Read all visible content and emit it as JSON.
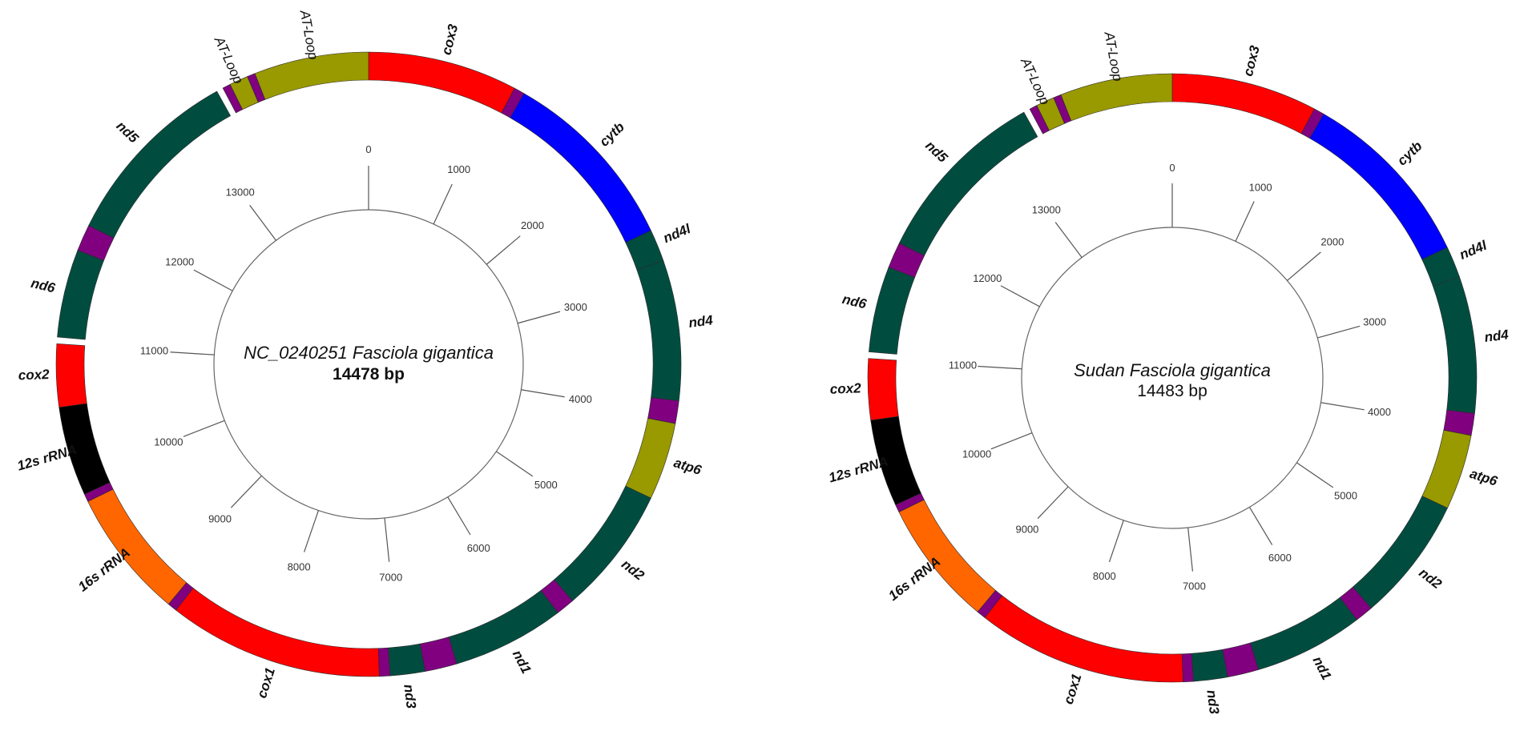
{
  "maps": [
    {
      "id": "reference",
      "title": "NC_0240251 Fasciola gigantica",
      "length_label": "14478  bp",
      "total_bp": 14478,
      "ticks": [
        0,
        1000,
        2000,
        3000,
        4000,
        5000,
        6000,
        7000,
        8000,
        9000,
        10000,
        11000,
        12000,
        13000
      ],
      "segments": [
        {
          "name": "cox3",
          "start": 0,
          "end": 1120,
          "color": "#ff0000"
        },
        {
          "name": "trna",
          "start": 1120,
          "end": 1200,
          "color": "#800080"
        },
        {
          "name": "cytb",
          "start": 1200,
          "end": 2600,
          "color": "#0000ff"
        },
        {
          "name": "nd4l",
          "start": 2600,
          "end": 2840,
          "color": "#004d40"
        },
        {
          "name": "nd4",
          "start": 2840,
          "end": 3890,
          "color": "#004d40"
        },
        {
          "name": "trna",
          "start": 3890,
          "end": 4060,
          "color": "#800080"
        },
        {
          "name": "atp6",
          "start": 4060,
          "end": 4640,
          "color": "#999900"
        },
        {
          "name": "nd2",
          "start": 4640,
          "end": 5600,
          "color": "#004d40"
        },
        {
          "name": "trna",
          "start": 5600,
          "end": 5740,
          "color": "#800080"
        },
        {
          "name": "nd1",
          "start": 5740,
          "end": 6580,
          "color": "#004d40"
        },
        {
          "name": "trna",
          "start": 6580,
          "end": 6820,
          "color": "#800080"
        },
        {
          "name": "nd3",
          "start": 6820,
          "end": 7080,
          "color": "#004d40"
        },
        {
          "name": "trna",
          "start": 7080,
          "end": 7160,
          "color": "#800080"
        },
        {
          "name": "cox1",
          "start": 7160,
          "end": 8770,
          "color": "#ff0000"
        },
        {
          "name": "trna",
          "start": 8770,
          "end": 8840,
          "color": "#800080"
        },
        {
          "name": "16s rRNA",
          "start": 8840,
          "end": 9810,
          "color": "#ff6600"
        },
        {
          "name": "trna",
          "start": 9810,
          "end": 9870,
          "color": "#800080"
        },
        {
          "name": "12s rRNA",
          "start": 9870,
          "end": 10540,
          "color": "#000000"
        },
        {
          "name": "cox2",
          "start": 10540,
          "end": 11010,
          "color": "#ff0000"
        },
        {
          "name": "nd6",
          "start": 11060,
          "end": 11720,
          "color": "#004d40"
        },
        {
          "name": "trna",
          "start": 11720,
          "end": 11920,
          "color": "#800080"
        },
        {
          "name": "nd5",
          "start": 11920,
          "end": 13310,
          "color": "#004d40"
        },
        {
          "name": "trna",
          "start": 13360,
          "end": 13420,
          "color": "#800080"
        },
        {
          "name": "AT-Loop",
          "start": 13420,
          "end": 13560,
          "color": "#999900"
        },
        {
          "name": "trna",
          "start": 13560,
          "end": 13620,
          "color": "#800080"
        },
        {
          "name": "AT-Loop",
          "start": 13620,
          "end": 14478,
          "color": "#999900"
        }
      ],
      "labels": [
        {
          "text": "cox3",
          "pos": 570,
          "italic_bold": true
        },
        {
          "text": "cytb",
          "pos": 1880,
          "italic_bold": true
        },
        {
          "text": "nd4l",
          "pos": 2700,
          "italic_bold": true
        },
        {
          "text": "nd4",
          "pos": 3330,
          "italic_bold": true
        },
        {
          "text": "atp6",
          "pos": 4340,
          "italic_bold": true
        },
        {
          "text": "nd2",
          "pos": 5150,
          "italic_bold": true
        },
        {
          "text": "nd1",
          "pos": 6150,
          "italic_bold": true
        },
        {
          "text": "nd3",
          "pos": 6960,
          "italic_bold": true
        },
        {
          "text": "cox1",
          "pos": 7950,
          "italic_bold": true
        },
        {
          "text": "16s rRNA",
          "pos": 9330,
          "italic_bold": true
        },
        {
          "text": "12s rRNA",
          "pos": 10200,
          "italic_bold": true
        },
        {
          "text": "cox2",
          "pos": 10780,
          "italic_bold": true
        },
        {
          "text": "nd6",
          "pos": 11400,
          "italic_bold": true
        },
        {
          "text": "nd5",
          "pos": 12620,
          "italic_bold": true
        },
        {
          "text": "AT-Loop",
          "pos": 13480,
          "italic_bold": false
        },
        {
          "text": "AT-Loop",
          "pos": 14060,
          "italic_bold": false
        }
      ]
    },
    {
      "id": "sudan",
      "title": "Sudan Fasciola gigantica",
      "length_label": "14483 bp",
      "total_bp": 14483,
      "ticks": [
        0,
        1000,
        2000,
        3000,
        4000,
        5000,
        6000,
        7000,
        8000,
        9000,
        10000,
        11000,
        12000,
        13000
      ],
      "segments": [
        {
          "name": "cox3",
          "start": 0,
          "end": 1120,
          "color": "#ff0000"
        },
        {
          "name": "trna",
          "start": 1120,
          "end": 1200,
          "color": "#800080"
        },
        {
          "name": "cytb",
          "start": 1200,
          "end": 2600,
          "color": "#0000ff"
        },
        {
          "name": "nd4l",
          "start": 2600,
          "end": 2840,
          "color": "#004d40"
        },
        {
          "name": "nd4",
          "start": 2840,
          "end": 3890,
          "color": "#004d40"
        },
        {
          "name": "trna",
          "start": 3890,
          "end": 4060,
          "color": "#800080"
        },
        {
          "name": "atp6",
          "start": 4060,
          "end": 4640,
          "color": "#999900"
        },
        {
          "name": "nd2",
          "start": 4640,
          "end": 5600,
          "color": "#004d40"
        },
        {
          "name": "trna",
          "start": 5600,
          "end": 5740,
          "color": "#800080"
        },
        {
          "name": "nd1",
          "start": 5740,
          "end": 6580,
          "color": "#004d40"
        },
        {
          "name": "trna",
          "start": 6580,
          "end": 6820,
          "color": "#800080"
        },
        {
          "name": "nd3",
          "start": 6820,
          "end": 7080,
          "color": "#004d40"
        },
        {
          "name": "trna",
          "start": 7080,
          "end": 7160,
          "color": "#800080"
        },
        {
          "name": "cox1",
          "start": 7160,
          "end": 8770,
          "color": "#ff0000"
        },
        {
          "name": "trna",
          "start": 8770,
          "end": 8840,
          "color": "#800080"
        },
        {
          "name": "16s rRNA",
          "start": 8840,
          "end": 9810,
          "color": "#ff6600"
        },
        {
          "name": "trna",
          "start": 9810,
          "end": 9870,
          "color": "#800080"
        },
        {
          "name": "12s rRNA",
          "start": 9870,
          "end": 10540,
          "color": "#000000"
        },
        {
          "name": "cox2",
          "start": 10540,
          "end": 11010,
          "color": "#ff0000"
        },
        {
          "name": "nd6",
          "start": 11060,
          "end": 11720,
          "color": "#004d40"
        },
        {
          "name": "trna",
          "start": 11720,
          "end": 11920,
          "color": "#800080"
        },
        {
          "name": "nd5",
          "start": 11920,
          "end": 13310,
          "color": "#004d40"
        },
        {
          "name": "trna",
          "start": 13360,
          "end": 13420,
          "color": "#800080"
        },
        {
          "name": "AT-Loop",
          "start": 13420,
          "end": 13560,
          "color": "#999900"
        },
        {
          "name": "trna",
          "start": 13560,
          "end": 13620,
          "color": "#800080"
        },
        {
          "name": "AT-Loop",
          "start": 13620,
          "end": 14483,
          "color": "#999900"
        }
      ],
      "labels": [
        {
          "text": "cox3",
          "pos": 570,
          "italic_bold": true
        },
        {
          "text": "cytb",
          "pos": 1880,
          "italic_bold": true
        },
        {
          "text": "nd4l",
          "pos": 2700,
          "italic_bold": true
        },
        {
          "text": "nd4",
          "pos": 3330,
          "italic_bold": true
        },
        {
          "text": "atp6",
          "pos": 4340,
          "italic_bold": true
        },
        {
          "text": "nd2",
          "pos": 5150,
          "italic_bold": true
        },
        {
          "text": "nd1",
          "pos": 6150,
          "italic_bold": true
        },
        {
          "text": "nd3",
          "pos": 6960,
          "italic_bold": true
        },
        {
          "text": "cox1",
          "pos": 7950,
          "italic_bold": true
        },
        {
          "text": "16s rRNA",
          "pos": 9330,
          "italic_bold": true
        },
        {
          "text": "12s rRNA",
          "pos": 10200,
          "italic_bold": true
        },
        {
          "text": "cox2",
          "pos": 10780,
          "italic_bold": true
        },
        {
          "text": "nd6",
          "pos": 11400,
          "italic_bold": true
        },
        {
          "text": "nd5",
          "pos": 12620,
          "italic_bold": true
        },
        {
          "text": "AT-Loop",
          "pos": 13480,
          "italic_bold": false
        },
        {
          "text": "AT-Loop",
          "pos": 14060,
          "italic_bold": false
        }
      ]
    }
  ]
}
